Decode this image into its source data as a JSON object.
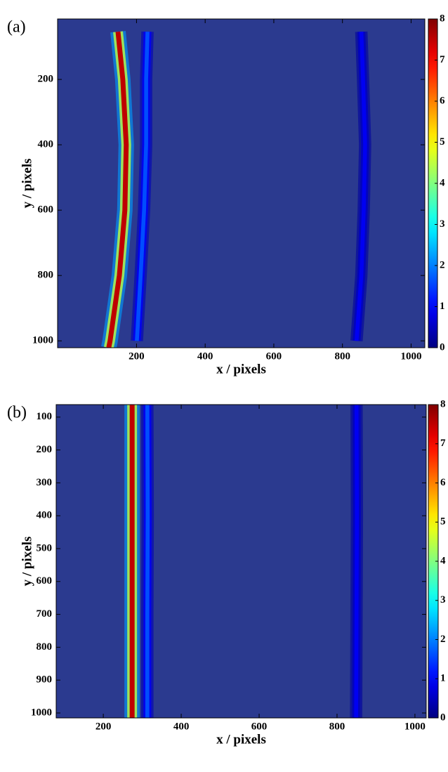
{
  "chart_data": [
    {
      "type": "heatmap",
      "panel_label": "(a)",
      "xlabel": "x / pixels",
      "ylabel": "y / pixels",
      "xlim": [
        -30,
        1040
      ],
      "ylim": [
        15,
        1021
      ],
      "y_inverted": true,
      "xticks": [
        200,
        400,
        600,
        800,
        1000
      ],
      "yticks": [
        200,
        400,
        600,
        800,
        1000
      ],
      "colormap": "jet",
      "clim": [
        0,
        8
      ],
      "cticks": [
        0,
        1,
        2,
        3,
        4,
        5,
        6,
        7,
        8
      ],
      "background_color": "#2b3a8f",
      "traces": [
        {
          "x": [
            146,
            160,
            170,
            166,
            150,
            123,
            119
          ],
          "y": [
            54,
            200,
            400,
            600,
            800,
            1000,
            1021
          ],
          "intensity": 7.5
        },
        {
          "x": [
            232,
            228,
            228,
            222,
            212,
            201
          ],
          "y": [
            54,
            200,
            400,
            600,
            800,
            1000
          ],
          "intensity": 1.6
        },
        {
          "x": [
            855,
            860,
            866,
            862,
            855,
            841
          ],
          "y": [
            54,
            200,
            400,
            600,
            800,
            1000
          ],
          "intensity": 0.9
        }
      ]
    },
    {
      "type": "heatmap",
      "panel_label": "(b)",
      "xlabel": "x / pixels",
      "ylabel": "y / pixels",
      "xlim": [
        79,
        1029
      ],
      "ylim": [
        62,
        1015
      ],
      "y_inverted": true,
      "xticks": [
        200,
        400,
        600,
        800,
        1000
      ],
      "yticks": [
        100,
        200,
        300,
        400,
        500,
        600,
        700,
        800,
        900,
        1000
      ],
      "colormap": "jet",
      "clim": [
        0,
        8
      ],
      "cticks": [
        0,
        1,
        2,
        3,
        4,
        5,
        6,
        7,
        8
      ],
      "background_color": "#2b3a8f",
      "traces": [
        {
          "x": [
            274,
            274,
            274,
            274
          ],
          "y": [
            62,
            400,
            700,
            1015
          ],
          "intensity": 7.5
        },
        {
          "x": [
            313,
            314,
            313,
            313
          ],
          "y": [
            62,
            400,
            700,
            1015
          ],
          "intensity": 1.6
        },
        {
          "x": [
            850,
            851,
            850,
            849
          ],
          "y": [
            62,
            400,
            700,
            1015
          ],
          "intensity": 0.9
        }
      ]
    }
  ]
}
